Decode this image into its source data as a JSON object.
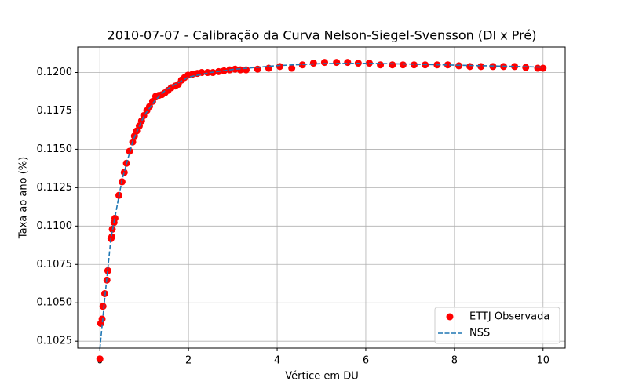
{
  "chart_data": {
    "type": "scatter",
    "title": "2010-07-07 - Calibração da Curva Nelson-Siegel-Svensson (DI x Pré)",
    "xlabel": "Vértice em DU",
    "ylabel": "Taxa ao ano (%)",
    "xlim": [
      -0.5,
      10.5
    ],
    "ylim": [
      0.10205,
      0.12166
    ],
    "xticks": [
      0,
      2,
      4,
      6,
      8,
      10
    ],
    "yticks": [
      0.1025,
      {
        "value": 0.105,
        "label": "0.1050"
      },
      0.1075,
      {
        "value": 0.11,
        "label": "0.1100"
      },
      0.1125,
      {
        "value": 0.115,
        "label": "0.1150"
      },
      0.1175,
      {
        "value": 0.12,
        "label": "0.1200"
      }
    ],
    "grid": true,
    "legend": "lower right",
    "series": [
      {
        "name": "ETTJ Observada",
        "type": "scatter",
        "color": "#ff0000",
        "x": [
          0,
          0.02,
          0.05,
          0.07,
          0.11,
          0.16,
          0.18,
          0.25,
          0.27,
          0.28,
          0.32,
          0.34,
          0.43,
          0.5,
          0.55,
          0.6,
          0.67,
          0.74,
          0.78,
          0.83,
          0.89,
          0.94,
          0.99,
          1.06,
          1.12,
          1.19,
          1.26,
          1.33,
          1.4,
          1.47,
          1.54,
          1.61,
          1.7,
          1.77,
          1.84,
          1.91,
          1.99,
          2.09,
          2.2,
          2.3,
          2.43,
          2.55,
          2.68,
          2.8,
          2.93,
          3.05,
          3.17,
          3.3,
          3.56,
          3.81,
          4.06,
          4.33,
          4.57,
          4.82,
          5.07,
          5.34,
          5.59,
          5.83,
          6.08,
          6.33,
          6.6,
          6.84,
          7.09,
          7.34,
          7.61,
          7.85,
          8.1,
          8.35,
          8.6,
          8.87,
          9.11,
          9.36,
          9.61,
          9.88,
          10.0
        ],
        "values": [
          0.10135,
          0.10366,
          0.10394,
          0.10477,
          0.1056,
          0.10648,
          0.10709,
          0.10918,
          0.10929,
          0.10979,
          0.11023,
          0.11051,
          0.112,
          0.11288,
          0.11349,
          0.11409,
          0.11487,
          0.11547,
          0.11586,
          0.11619,
          0.11652,
          0.11685,
          0.11719,
          0.11752,
          0.11779,
          0.11812,
          0.11845,
          0.11851,
          0.11856,
          0.11868,
          0.11884,
          0.11901,
          0.11912,
          0.11923,
          0.1195,
          0.11967,
          0.11983,
          0.11989,
          0.11994,
          0.12,
          0.12,
          0.12,
          0.12006,
          0.12011,
          0.12017,
          0.12022,
          0.12017,
          0.12017,
          0.12022,
          0.12028,
          0.12039,
          0.12028,
          0.1205,
          0.12061,
          0.12066,
          0.12066,
          0.12066,
          0.12061,
          0.12061,
          0.1205,
          0.1205,
          0.1205,
          0.1205,
          0.1205,
          0.1205,
          0.1205,
          0.12044,
          0.12039,
          0.12039,
          0.12039,
          0.12039,
          0.12039,
          0.12033,
          0.12028,
          0.12028
        ]
      },
      {
        "name": "NSS",
        "type": "line",
        "color": "#1f77b4",
        "x": [
          0,
          0.1,
          0.25,
          0.5,
          0.75,
          1,
          1.25,
          1.5,
          1.75,
          2,
          2.5,
          3,
          4,
          5,
          6,
          7,
          8,
          9,
          10
        ],
        "values": [
          0.102,
          0.105,
          0.1092,
          0.113,
          0.1156,
          0.1172,
          0.1182,
          0.1189,
          0.1193,
          0.1197,
          0.12,
          0.1202,
          0.12045,
          0.12058,
          0.1206,
          0.12055,
          0.12048,
          0.12042,
          0.12035
        ]
      }
    ]
  }
}
